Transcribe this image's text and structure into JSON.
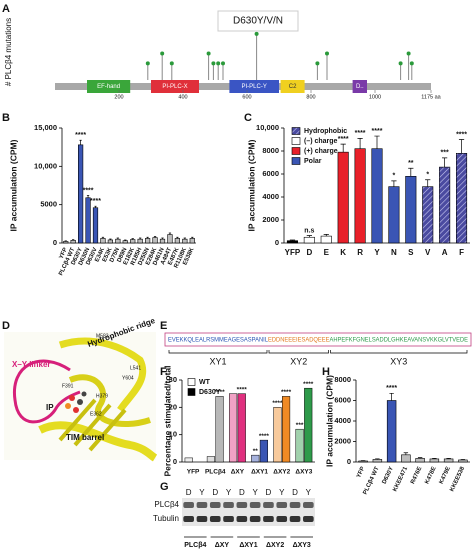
{
  "panel_labels": [
    "A",
    "B",
    "C",
    "D",
    "E",
    "F",
    "G",
    "H"
  ],
  "chart_data": [
    {
      "type": "lollipop",
      "ylabel": "# PLCβ4 mutations",
      "annotation": "D630Y/V/N",
      "color": "#2a9a3a",
      "x": [
        290,
        335,
        365,
        480,
        495,
        510,
        525,
        630,
        820,
        850,
        1080,
        1105,
        1115
      ],
      "values": [
        2,
        3,
        2,
        3,
        2,
        2,
        2,
        5,
        2,
        3,
        2,
        3,
        2
      ],
      "xlim": [
        0,
        1175
      ],
      "ylim": [
        0,
        6
      ],
      "xticks": [
        200,
        400,
        600,
        800,
        1000,
        {
          "value": 1175,
          "label": "1175 aa"
        }
      ],
      "domains": [
        {
          "name": "EF-hand",
          "start": 100,
          "end": 235,
          "color": "#3aa63a"
        },
        {
          "name": "PI-PLC-X",
          "start": 300,
          "end": 450,
          "color": "#e0303a"
        },
        {
          "name": "PI-PLC-Y",
          "start": 545,
          "end": 700,
          "color": "#3a55c4"
        },
        {
          "name": "C2",
          "start": 705,
          "end": 780,
          "color": "#f0d020"
        },
        {
          "name": "D..",
          "start": 930,
          "end": 975,
          "color": "#7a3aa8"
        }
      ]
    },
    {
      "type": "bar",
      "ylabel": "IP accumulation (CPM)",
      "categories": [
        "YFP",
        "PLCβ4 WT",
        "D630Y",
        "D630N",
        "D630V",
        "E34K",
        "E53K",
        "D75N",
        "D89N",
        "E182K",
        "R185H",
        "D255N",
        "E284K",
        "D461N",
        "A484T",
        "E487K",
        "R1108K",
        "E538K"
      ],
      "values": [
        200,
        350,
        12800,
        5900,
        4600,
        600,
        400,
        500,
        300,
        450,
        500,
        600,
        700,
        500,
        1100,
        600,
        500,
        600
      ],
      "errors": [
        80,
        100,
        600,
        300,
        200,
        150,
        120,
        150,
        100,
        120,
        150,
        150,
        150,
        150,
        200,
        150,
        150,
        150
      ],
      "colors": [
        "#bdbdbd",
        "#bdbdbd",
        "#3a55b4",
        "#3a55b4",
        "#3a55b4",
        "#bdbdbd",
        "#bdbdbd",
        "#bdbdbd",
        "#bdbdbd",
        "#bdbdbd",
        "#bdbdbd",
        "#bdbdbd",
        "#bdbdbd",
        "#bdbdbd",
        "#bdbdbd",
        "#bdbdbd",
        "#bdbdbd",
        "#bdbdbd"
      ],
      "annotations": [
        null,
        null,
        "****",
        "****",
        "****",
        null,
        null,
        null,
        null,
        null,
        null,
        null,
        null,
        null,
        null,
        null,
        null,
        null
      ],
      "ylim": [
        0,
        15000
      ],
      "yticks": [
        0,
        5000,
        {
          "value": 10000,
          "label": "10,000"
        },
        {
          "value": 15000,
          "label": "15,000"
        }
      ]
    },
    {
      "type": "bar",
      "ylabel": "IP accumulation (CPM)",
      "categories": [
        "YFP",
        "D",
        "E",
        "K",
        "R",
        "Y",
        "N",
        "S",
        "V",
        "A",
        "F"
      ],
      "values": [
        200,
        500,
        600,
        7900,
        8200,
        8200,
        4900,
        5800,
        4900,
        6600,
        7800
      ],
      "errors": [
        60,
        150,
        150,
        700,
        900,
        1100,
        500,
        700,
        600,
        800,
        1200
      ],
      "colors": [
        "#000000",
        "#ffffff",
        "#ffffff",
        "#e8202a",
        "#e8202a",
        "#3a55b4",
        "#3a55b4",
        "#3a55b4",
        "#4a4aa0",
        "#4a4aa0",
        "#4a4aa0"
      ],
      "hatch": [
        false,
        false,
        false,
        false,
        false,
        false,
        false,
        false,
        true,
        true,
        true
      ],
      "annotations": [
        null,
        "n.s",
        null,
        "****",
        "****",
        "****",
        "*",
        "**",
        "*",
        "***",
        "****"
      ],
      "legend": [
        {
          "name": "Hydrophobic",
          "color": "#4a4aa0",
          "hatch": true
        },
        {
          "name": "(–) charge",
          "color": "#ffffff"
        },
        {
          "name": "(+) charge",
          "color": "#e8202a"
        },
        {
          "name": "Polar",
          "color": "#3a55b4"
        }
      ],
      "ylim": [
        0,
        10000
      ],
      "yticks": [
        0,
        2000,
        4000,
        6000,
        8000,
        {
          "value": 10000,
          "label": "10,000"
        }
      ]
    },
    {
      "type": "grouped-bar",
      "ylabel": "Percentage stimulated/total",
      "categories": [
        "YFP",
        "PLCβ4",
        "ΔXY",
        "ΔXY1",
        "ΔXY2",
        "ΔXY3"
      ],
      "colors": [
        "#d9d9d9",
        "#b8b8b8",
        "#e0307f",
        "#3a55b4",
        "#f08a24",
        "#2e9a4a"
      ],
      "series": [
        {
          "name": "WT",
          "color": "#ffffff",
          "values": [
            1.5,
            2,
            25,
            2.5,
            20,
            12
          ],
          "annotations": [
            null,
            null,
            null,
            "**",
            "****",
            "***"
          ]
        },
        {
          "name": "D630Y",
          "color": "#000000",
          "values": [
            null,
            24,
            25,
            8,
            24,
            27
          ],
          "annotations": [
            null,
            "****",
            "****",
            "****",
            "****",
            "****"
          ]
        }
      ],
      "ylim": [
        0,
        30
      ],
      "yticks": [
        0,
        10,
        20,
        30
      ]
    },
    {
      "type": "bar",
      "ylabel": "IP accumulation (CPM)",
      "categories": [
        "YFP",
        "PLCβ4 WT",
        "D630Y",
        "KKEE471",
        "R476E",
        "K478E",
        "K479E",
        "KKEE538"
      ],
      "values": [
        100,
        250,
        6000,
        700,
        350,
        300,
        300,
        200
      ],
      "errors": [
        40,
        60,
        700,
        200,
        80,
        60,
        60,
        50
      ],
      "colors": [
        "#bdbdbd",
        "#bdbdbd",
        "#3a55b4",
        "#bdbdbd",
        "#bdbdbd",
        "#bdbdbd",
        "#bdbdbd",
        "#bdbdbd"
      ],
      "annotations": [
        null,
        null,
        "****",
        null,
        null,
        null,
        null,
        null
      ],
      "ylim": [
        0,
        8000
      ],
      "yticks": [
        0,
        2000,
        4000,
        6000,
        8000
      ]
    }
  ],
  "structure": {
    "labels": [
      "Hydrophobic ridge",
      "X–Y linker",
      "IP",
      "TIM barrel",
      "M583",
      "L541",
      "Y604",
      "F391",
      "H379",
      "E362"
    ]
  },
  "sequence": {
    "segments": [
      {
        "name": "XY1",
        "text": "EVEKKQLEALRSMMEAGESASPANIL",
        "color": "#2a55b4"
      },
      {
        "name": "XY2",
        "text": "EDDNEEEIESADQEEE",
        "color": "#e07a20"
      },
      {
        "name": "XY3",
        "text": "AHPEFKFGNELSADDLGHKEAVANSVKKGLVTVEDE",
        "color": "#2e9a4a"
      }
    ]
  },
  "blot": {
    "lanes": [
      "D",
      "Y",
      "D",
      "Y",
      "D",
      "Y",
      "D",
      "Y",
      "D",
      "Y"
    ],
    "rows": [
      "PLCβ4",
      "Tubulin"
    ],
    "groups": [
      "PLCβ4",
      "ΔXY",
      "ΔXY1",
      "ΔXY2",
      "ΔXY3"
    ]
  }
}
